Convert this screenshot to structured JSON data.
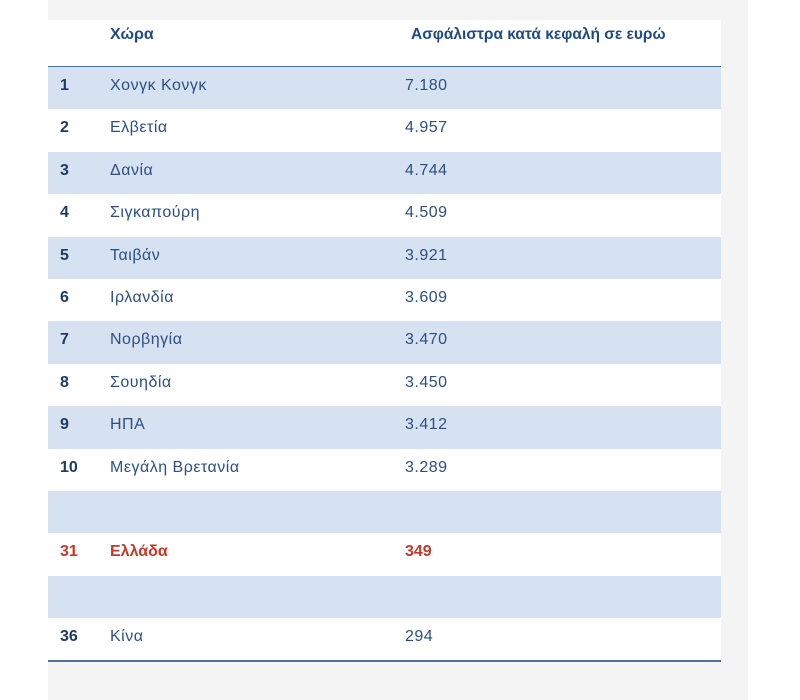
{
  "table": {
    "headers": {
      "rank": "",
      "country": "Χώρα",
      "premium": "Ασφάλιστρα κατά κεφαλή σε ευρώ"
    },
    "colors": {
      "header_text": "#1f4a85",
      "body_text": "#2d4f82",
      "stripe": "#d6e2f1",
      "highlight": "#c0392b",
      "rule": "#4f6f9f"
    },
    "rows": [
      {
        "rank": "1",
        "country": "Χονγκ Κονγκ",
        "value": "7.180"
      },
      {
        "rank": "2",
        "country": "Ελβετία",
        "value": "4.957"
      },
      {
        "rank": "3",
        "country": "Δανία",
        "value": "4.744"
      },
      {
        "rank": "4",
        "country": "Σιγκαπούρη",
        "value": "4.509"
      },
      {
        "rank": "5",
        "country": "Ταιβάν",
        "value": "3.921"
      },
      {
        "rank": "6",
        "country": "Ιρλανδία",
        "value": "3.609"
      },
      {
        "rank": "7",
        "country": "Νορβηγία",
        "value": "3.470"
      },
      {
        "rank": "8",
        "country": "Σουηδία",
        "value": "3.450"
      },
      {
        "rank": "9",
        "country": "ΗΠΑ",
        "value": "3.412"
      },
      {
        "rank": "10",
        "country": "Μεγάλη Βρετανία",
        "value": "3.289"
      },
      {
        "rank": "",
        "country": "",
        "value": ""
      },
      {
        "rank": "31",
        "country": "Ελλάδα",
        "value": "349",
        "highlight": true
      },
      {
        "rank": "",
        "country": "",
        "value": ""
      },
      {
        "rank": "36",
        "country": "Κίνα",
        "value": "294"
      }
    ]
  }
}
